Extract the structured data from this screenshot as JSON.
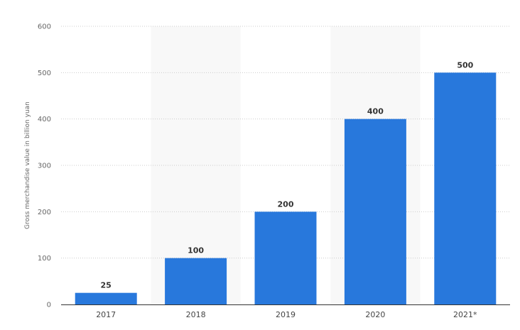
{
  "chart_data": {
    "type": "bar",
    "categories": [
      "2017",
      "2018",
      "2019",
      "2020",
      "2021*"
    ],
    "values": [
      25,
      100,
      200,
      400,
      500
    ],
    "data_labels": [
      "25",
      "100",
      "200",
      "400",
      "500"
    ],
    "title": "",
    "xlabel": "",
    "ylabel": "Gross merchandise value in billion yuan",
    "ylim": [
      0,
      600
    ],
    "yticks": [
      0,
      100,
      200,
      300,
      400,
      500,
      600
    ],
    "ytick_labels": [
      "0",
      "100",
      "200",
      "300",
      "400",
      "500",
      "600"
    ],
    "grid": true,
    "legend": "none",
    "colors": {
      "bar": "#2878dc",
      "band": "#f8f8f8",
      "grid": "#cccccc",
      "axis": "#333333"
    }
  }
}
